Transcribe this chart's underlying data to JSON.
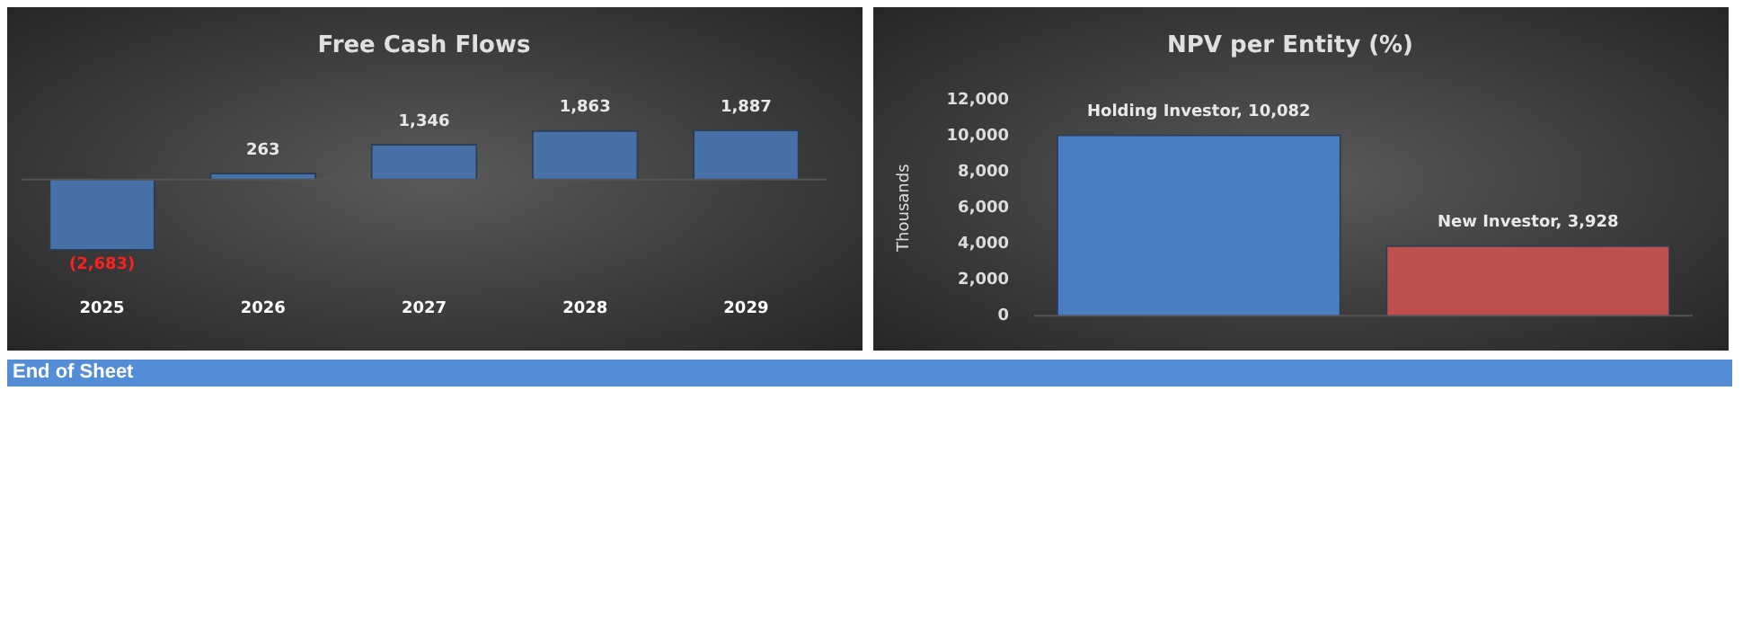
{
  "chart_data": [
    {
      "type": "bar",
      "title": "Free Cash Flows",
      "categories": [
        "2025",
        "2026",
        "2027",
        "2028",
        "2029"
      ],
      "values": [
        -2683,
        263,
        1346,
        1863,
        1887
      ],
      "color": "#4672a8",
      "value_labels": [
        "(2,683)",
        "263",
        "1,346",
        "1,863",
        "1,887"
      ],
      "tick_labels": "x"
    },
    {
      "type": "bar",
      "title": "NPV per Entity (%)",
      "ylabel": "Thousands",
      "categories": [
        null,
        null
      ],
      "values": [
        10082,
        3928
      ],
      "colors": [
        "#4a7fc4",
        "#c0504d"
      ],
      "value_labels": [
        "Holding Investor, 10,082",
        "New Investor, 3,928"
      ],
      "ylim": [
        0,
        12000
      ],
      "yticks": [
        0,
        {
          "value": 2000,
          "label": "2,000"
        },
        {
          "value": 4000,
          "label": "4,000"
        },
        {
          "value": 6000,
          "label": "6,000"
        },
        {
          "value": 8000,
          "label": "8,000"
        },
        {
          "value": 10000,
          "label": "10,000"
        },
        {
          "value": 12000,
          "label": "12,000"
        }
      ],
      "tick_labels": "y"
    },
    {
      "type": "other",
      "title": "End of Sheet"
    }
  ]
}
